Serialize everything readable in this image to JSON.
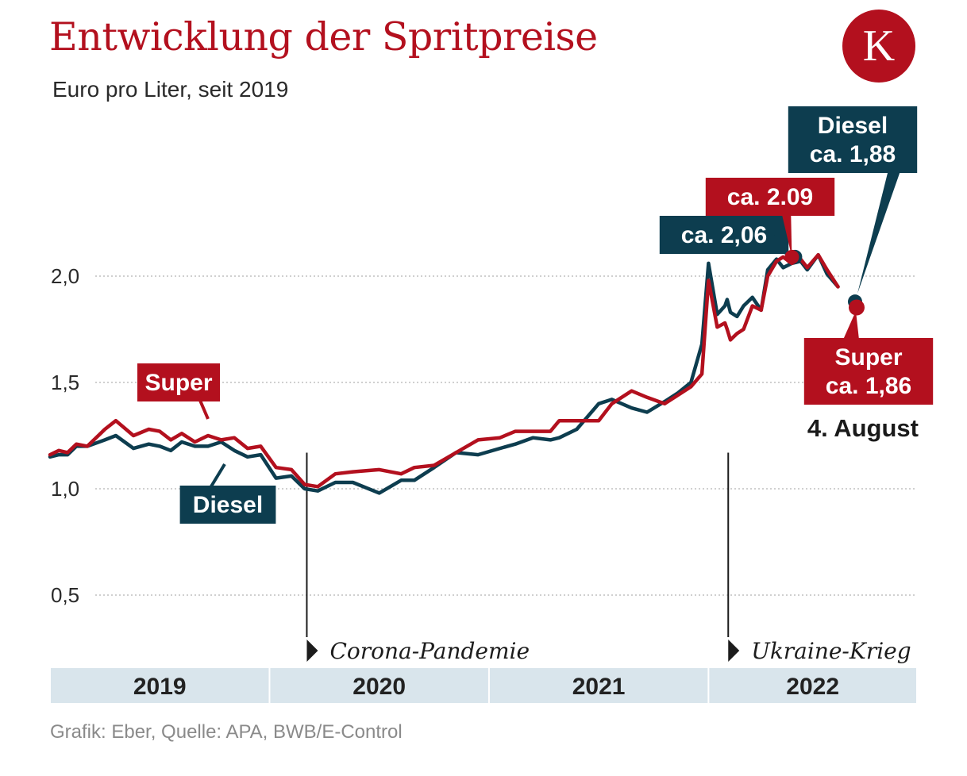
{
  "header": {
    "title": "Entwicklung der Spritpreise",
    "subtitle": "Euro pro Liter, seit 2019",
    "logo_letter": "K"
  },
  "source": "Grafik: Eber, Quelle: APA, BWB/E-Control",
  "colors": {
    "super": "#b3101e",
    "diesel": "#0d3d4f",
    "grid": "#b5b5b5",
    "band": "#d9e5ec",
    "text": "#2a2a2a"
  },
  "chart_data": {
    "type": "line",
    "x_unit": "year",
    "xlim": [
      2019.0,
      2022.95
    ],
    "ylim": [
      0.0,
      2.0
    ],
    "y_ticks": [
      {
        "value": 0.5,
        "label": "0,5"
      },
      {
        "value": 1.0,
        "label": "1,0"
      },
      {
        "value": 1.5,
        "label": "1,5"
      },
      {
        "value": 2.0,
        "label": "2,0"
      }
    ],
    "grid": true,
    "year_bands": [
      {
        "label": "2019",
        "start": 2019.0,
        "end": 2020.0
      },
      {
        "label": "2020",
        "start": 2020.0,
        "end": 2021.0
      },
      {
        "label": "2021",
        "start": 2021.0,
        "end": 2022.0
      },
      {
        "label": "2022",
        "start": 2022.0,
        "end": 2022.95
      }
    ],
    "series": [
      {
        "name": "Super",
        "label": "Super",
        "key": "super",
        "x": [
          2019.0,
          2019.04,
          2019.08,
          2019.12,
          2019.17,
          2019.25,
          2019.3,
          2019.38,
          2019.45,
          2019.5,
          2019.55,
          2019.6,
          2019.66,
          2019.72,
          2019.78,
          2019.84,
          2019.9,
          2019.96,
          2020.03,
          2020.1,
          2020.16,
          2020.22,
          2020.3,
          2020.38,
          2020.5,
          2020.6,
          2020.66,
          2020.75,
          2020.85,
          2020.95,
          2021.05,
          2021.12,
          2021.2,
          2021.28,
          2021.32,
          2021.4,
          2021.5,
          2021.56,
          2021.65,
          2021.72,
          2021.8,
          2021.86,
          2021.92,
          2021.97,
          2022.0,
          2022.04,
          2022.075,
          2022.085,
          2022.1,
          2022.13,
          2022.16,
          2022.2,
          2022.24,
          2022.27,
          2022.31,
          2022.34,
          2022.38,
          2022.42,
          2022.45,
          2022.5,
          2022.54,
          2022.59
        ],
        "values": [
          1.16,
          1.18,
          1.17,
          1.21,
          1.2,
          1.28,
          1.32,
          1.25,
          1.28,
          1.27,
          1.23,
          1.26,
          1.22,
          1.25,
          1.23,
          1.24,
          1.19,
          1.2,
          1.1,
          1.09,
          1.02,
          1.01,
          1.07,
          1.08,
          1.09,
          1.07,
          1.1,
          1.11,
          1.17,
          1.23,
          1.24,
          1.27,
          1.27,
          1.27,
          1.32,
          1.32,
          1.32,
          1.4,
          1.46,
          1.43,
          1.4,
          1.44,
          1.48,
          1.54,
          1.98,
          1.76,
          1.78,
          1.75,
          1.7,
          1.73,
          1.75,
          1.86,
          1.84,
          2.0,
          2.07,
          2.09,
          2.06,
          2.08,
          2.04,
          2.1,
          2.03,
          1.95
        ]
      },
      {
        "name": "Diesel",
        "label": "Diesel",
        "key": "diesel",
        "x": [
          2019.0,
          2019.04,
          2019.08,
          2019.12,
          2019.17,
          2019.25,
          2019.3,
          2019.38,
          2019.45,
          2019.5,
          2019.55,
          2019.6,
          2019.66,
          2019.72,
          2019.78,
          2019.84,
          2019.9,
          2019.96,
          2020.03,
          2020.1,
          2020.16,
          2020.22,
          2020.3,
          2020.38,
          2020.5,
          2020.6,
          2020.66,
          2020.75,
          2020.85,
          2020.95,
          2021.05,
          2021.12,
          2021.2,
          2021.28,
          2021.32,
          2021.4,
          2021.5,
          2021.56,
          2021.65,
          2021.72,
          2021.8,
          2021.86,
          2021.92,
          2021.97,
          2022.0,
          2022.04,
          2022.075,
          2022.085,
          2022.1,
          2022.13,
          2022.16,
          2022.2,
          2022.24,
          2022.27,
          2022.31,
          2022.34,
          2022.38,
          2022.42,
          2022.45,
          2022.5,
          2022.54,
          2022.59
        ],
        "values": [
          1.15,
          1.16,
          1.16,
          1.2,
          1.2,
          1.23,
          1.25,
          1.19,
          1.21,
          1.2,
          1.18,
          1.22,
          1.2,
          1.2,
          1.22,
          1.18,
          1.15,
          1.16,
          1.05,
          1.06,
          1.0,
          0.99,
          1.03,
          1.03,
          0.98,
          1.04,
          1.04,
          1.1,
          1.17,
          1.16,
          1.19,
          1.21,
          1.24,
          1.23,
          1.24,
          1.28,
          1.4,
          1.42,
          1.38,
          1.36,
          1.41,
          1.45,
          1.5,
          1.68,
          2.06,
          1.82,
          1.86,
          1.89,
          1.83,
          1.81,
          1.86,
          1.9,
          1.84,
          2.03,
          2.08,
          2.04,
          2.06,
          2.07,
          2.03,
          2.1,
          2.01,
          1.95
        ]
      }
    ],
    "annotations": [
      {
        "text": "Corona-Pandemie",
        "x": 2020.17
      },
      {
        "text": "Ukraine-Krieg",
        "x": 2022.09
      }
    ],
    "callouts": [
      {
        "key": "diesel",
        "text": "ca. 2,06",
        "at_x": 2022.09,
        "value": 2.06
      },
      {
        "key": "super",
        "text": "ca. 2,09",
        "at_x": 2022.38,
        "value": 2.09
      },
      {
        "key": "diesel",
        "lines": [
          "Diesel",
          "ca. 1,88"
        ],
        "at_x": 2022.62,
        "value": 1.88
      },
      {
        "key": "super",
        "lines": [
          "Super",
          "ca. 1,86"
        ],
        "at_x": 2022.62,
        "value": 1.86
      }
    ],
    "date_label": "4. August"
  }
}
